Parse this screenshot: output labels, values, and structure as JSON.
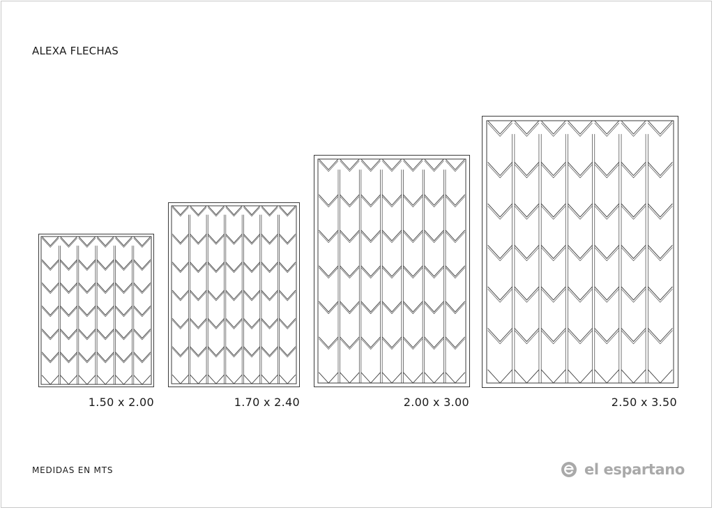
{
  "title": "ALEXA FLECHAS",
  "footer_note": "MEDIDAS EN MTS",
  "brand": {
    "name": "el espartano",
    "logo_icon": "brand-logo-icon",
    "color": "#a9a9a9"
  },
  "pattern": {
    "name": "chevron-arrows",
    "stroke_color": "#3a3a3a"
  },
  "sizes": [
    {
      "label": "1.50 x 2.00",
      "cols": 6,
      "rows": 6
    },
    {
      "label": "1.70 x 2.40",
      "cols": 7,
      "rows": 6
    },
    {
      "label": "2.00 x 3.00",
      "cols": 7,
      "rows": 6
    },
    {
      "label": "2.50 x 3.50",
      "cols": 7,
      "rows": 6
    }
  ]
}
